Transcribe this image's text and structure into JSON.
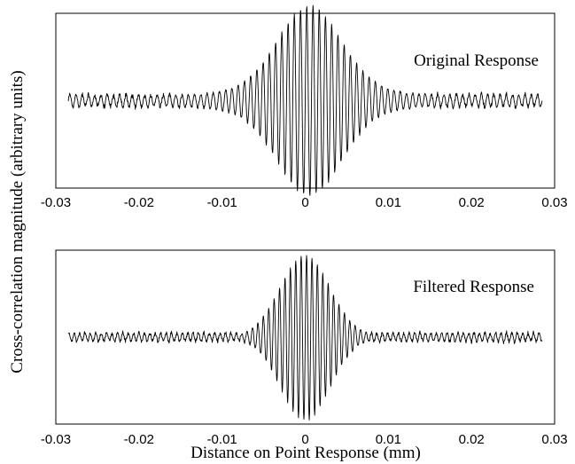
{
  "chart_data": [
    {
      "type": "line",
      "title": "Original Response",
      "xlabel": "",
      "ylabel": "",
      "xlim": [
        -0.03,
        0.03
      ],
      "ylim": [
        -1.05,
        1.05
      ],
      "x_ticks": [
        -0.03,
        -0.02,
        -0.01,
        0,
        0.01,
        0.02,
        0.03
      ],
      "x_tick_labels": [
        "-0.03",
        "-0.02",
        "-0.01",
        "0",
        "0.01",
        "0.02",
        "0.03"
      ],
      "x_range": [
        -0.0285,
        0.0285
      ],
      "carrier_period": 0.00075,
      "envelope": {
        "center": 0.0005,
        "peak": 1.0,
        "width": 0.0038,
        "shoulder": 0.14,
        "shoulder_width": 0.012,
        "baseline": 0.07
      },
      "x": [
        -0.028,
        -0.02,
        -0.01,
        -0.005,
        -0.002,
        0,
        0.001,
        0.002,
        0.005,
        0.01,
        0.02,
        0.028
      ],
      "y": [
        0.07,
        0.07,
        0.14,
        0.35,
        0.78,
        1.0,
        1.0,
        0.9,
        0.4,
        0.14,
        0.06,
        0.05
      ],
      "grid": false
    },
    {
      "type": "line",
      "title": "Filtered Response",
      "xlabel": "Distance on Point Response (mm)",
      "ylabel": "",
      "xlim": [
        -0.03,
        0.03
      ],
      "ylim": [
        -1.05,
        1.05
      ],
      "x_ticks": [
        -0.03,
        -0.02,
        -0.01,
        0,
        0.01,
        0.02,
        0.03
      ],
      "x_tick_labels": [
        "-0.03",
        "-0.02",
        "-0.01",
        "0",
        "0.01",
        "0.02",
        "0.03"
      ],
      "x_range": [
        -0.0285,
        0.0285
      ],
      "carrier_period": 0.00065,
      "envelope": {
        "center": 0.0,
        "peak": 1.0,
        "width": 0.003,
        "shoulder": 0.0,
        "shoulder_width": 0.01,
        "baseline": 0.05
      },
      "x": [
        -0.028,
        -0.01,
        -0.005,
        -0.002,
        0,
        0.002,
        0.005,
        0.008,
        0.01,
        0.028
      ],
      "y": [
        0.05,
        0.06,
        0.45,
        0.85,
        1.0,
        0.85,
        0.45,
        0.12,
        0.05,
        0.05
      ],
      "grid": false
    }
  ],
  "shared_ylabel": "Cross-correlation magnitude (arbitrary units)"
}
